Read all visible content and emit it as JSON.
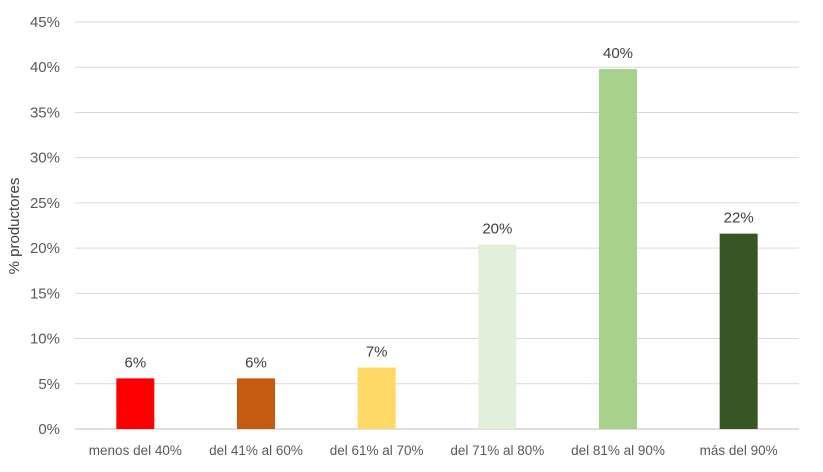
{
  "chart_data": {
    "type": "bar",
    "title": "",
    "xlabel": "",
    "ylabel": "% productores",
    "ylim": [
      0,
      45
    ],
    "yticks": [
      "0%",
      "5%",
      "10%",
      "15%",
      "20%",
      "25%",
      "30%",
      "35%",
      "40%",
      "45%"
    ],
    "grid": true,
    "legend": "none",
    "categories": [
      "menos del 40%",
      "del 41% al 60%",
      "del 61% al 70%",
      "del 71% al 80%",
      "del 81% al 90%",
      "más del 90%"
    ],
    "values": [
      5.6,
      5.6,
      6.8,
      20.4,
      39.8,
      21.6
    ],
    "data_labels": [
      "6%",
      "6%",
      "7%",
      "20%",
      "40%",
      "22%"
    ],
    "colors": [
      "#ff0000",
      "#c55a11",
      "#ffd966",
      "#e2efda",
      "#a9d18e",
      "#375623"
    ]
  }
}
